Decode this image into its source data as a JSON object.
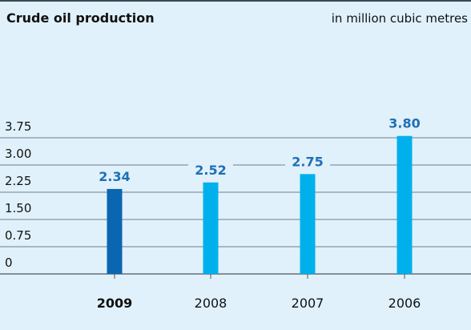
{
  "header": {
    "title": "Crude oil production",
    "unit": "in million cubic metres"
  },
  "chart_data": {
    "type": "bar",
    "title": "Crude oil production",
    "ylabel": "in million cubic metres",
    "categories": [
      "2009",
      "2008",
      "2007",
      "2006"
    ],
    "values": [
      2.34,
      2.52,
      2.75,
      3.8
    ],
    "value_labels": [
      "2.34",
      "2.52",
      "2.75",
      "3.80"
    ],
    "highlighted_category": "2009",
    "yticks": [
      "0",
      "0.75",
      "1.50",
      "2.25",
      "3.00",
      "3.75"
    ],
    "ylim": [
      0,
      3.75
    ],
    "grid": true,
    "colors": {
      "highlight_bar": "#0a66b0",
      "bar": "#00b0ec",
      "value_label": "#1f6fb5",
      "background": "#e0f1fb",
      "grid": "#4b5660"
    }
  }
}
